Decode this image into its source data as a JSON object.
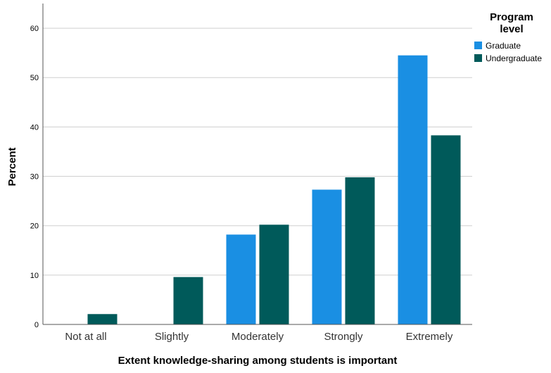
{
  "chart_data": {
    "type": "bar",
    "xlabel": "Extent knowledge-sharing among students is important",
    "ylabel": "Percent",
    "categories": [
      "Not at all",
      "Slightly",
      "Moderately",
      "Strongly",
      "Extremely"
    ],
    "series": [
      {
        "name": "Graduate",
        "values": [
          0,
          0,
          18.2,
          27.3,
          54.5
        ],
        "color": "#1a8fe3"
      },
      {
        "name": "Undergraduate",
        "values": [
          2.1,
          9.6,
          20.2,
          29.8,
          38.3
        ],
        "color": "#005a5a"
      }
    ],
    "ylim": [
      0,
      65
    ],
    "yticks": [
      0,
      10,
      20,
      30,
      40,
      50,
      60
    ],
    "grid": true,
    "legend": {
      "title_line1": "Program",
      "title_line2": "level",
      "placement": "top-right"
    }
  }
}
